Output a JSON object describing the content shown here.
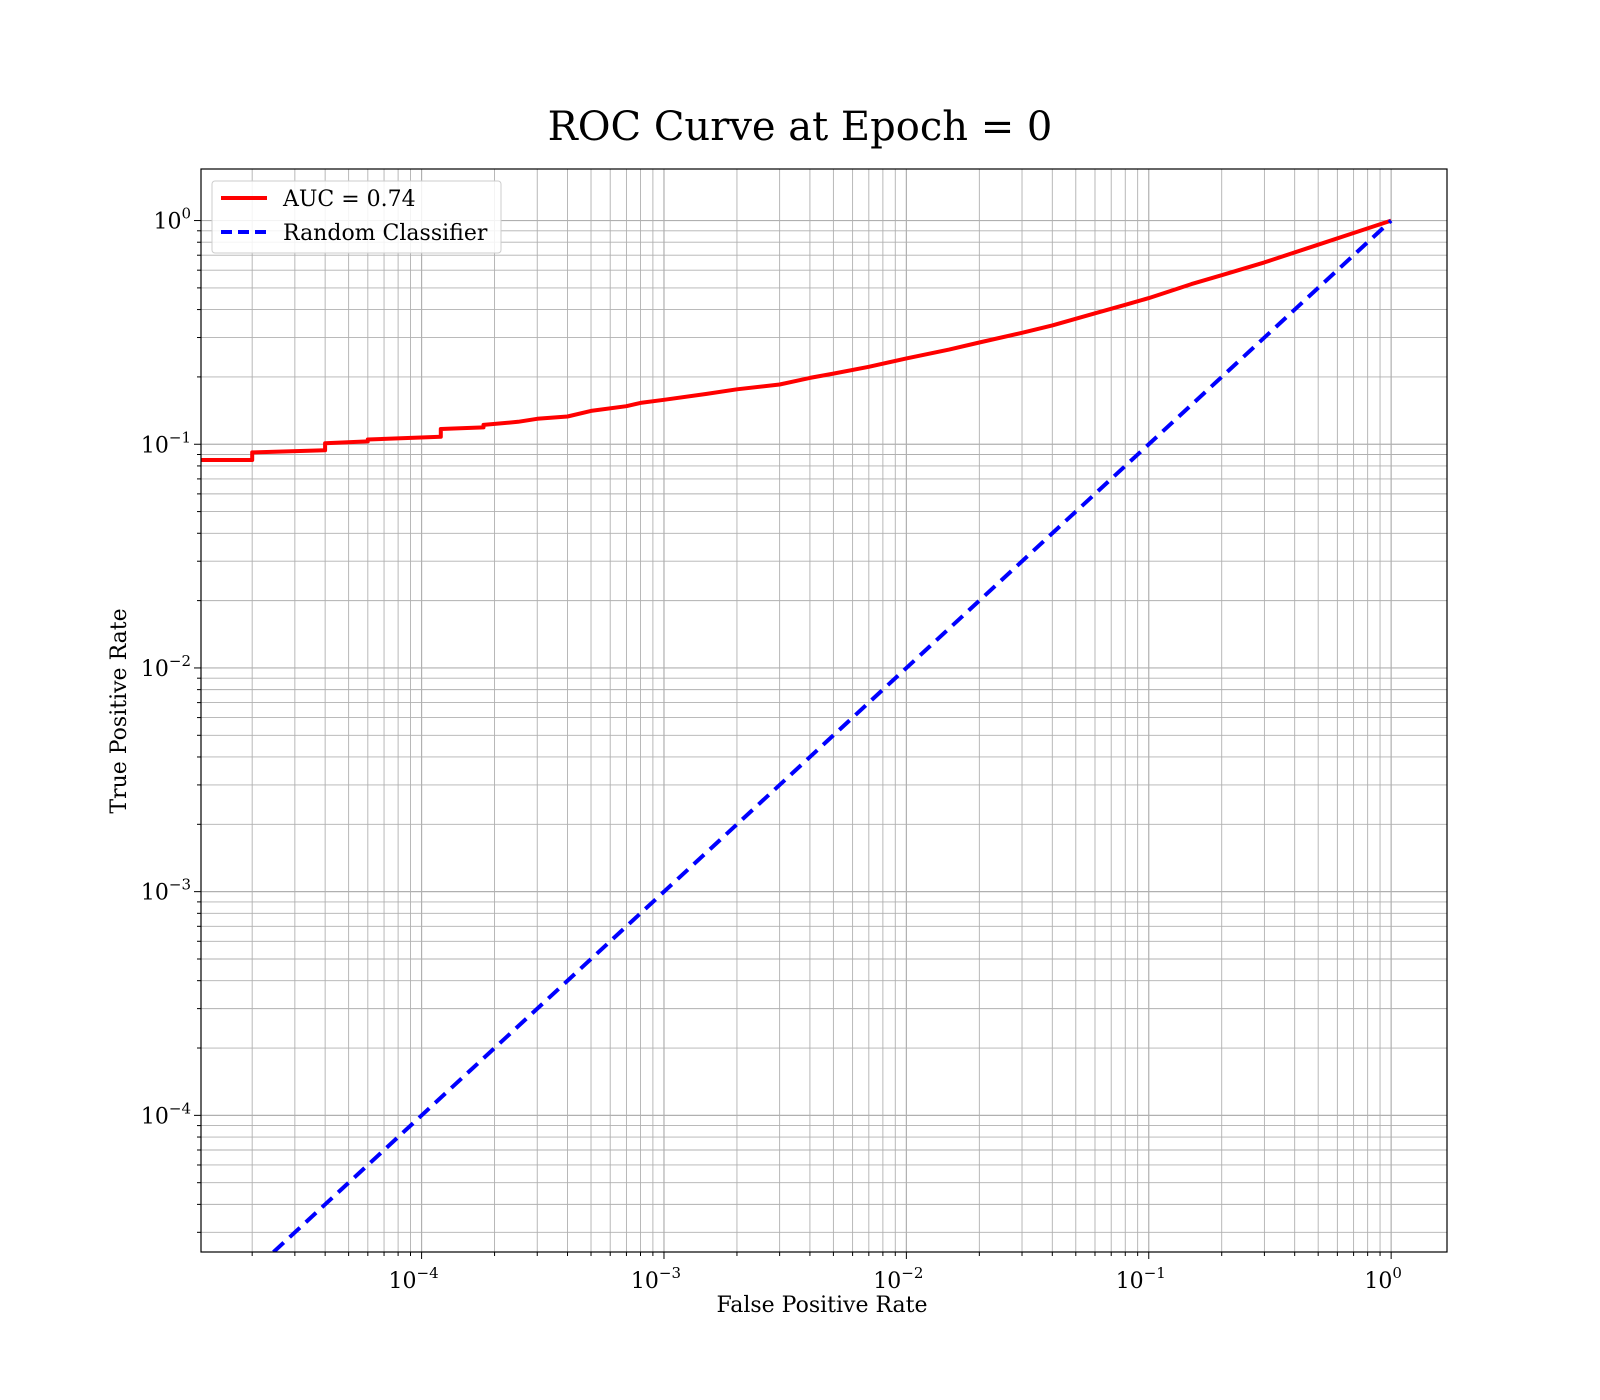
{
  "chart_data": {
    "type": "line",
    "title": "ROC Curve at Epoch = 0",
    "xlabel": "False Positive Rate",
    "ylabel": "True Positive Rate",
    "xscale": "log",
    "yscale": "log",
    "xlim": [
      1.23e-05,
      1.7
    ],
    "ylim": [
      2.45e-05,
      1.7
    ],
    "grid": "major and minor",
    "legend_placement": "top-left",
    "x_tick_labels": [
      {
        "value": 0.0001,
        "base": "10",
        "exp": "−4"
      },
      {
        "value": 0.001,
        "base": "10",
        "exp": "−3"
      },
      {
        "value": 0.01,
        "base": "10",
        "exp": "−2"
      },
      {
        "value": 0.1,
        "base": "10",
        "exp": "−1"
      },
      {
        "value": 1,
        "base": "10",
        "exp": "0"
      }
    ],
    "y_tick_labels": [
      {
        "value": 0.0001,
        "base": "10",
        "exp": "−4"
      },
      {
        "value": 0.001,
        "base": "10",
        "exp": "−3"
      },
      {
        "value": 0.01,
        "base": "10",
        "exp": "−2"
      },
      {
        "value": 0.1,
        "base": "10",
        "exp": "−1"
      },
      {
        "value": 1,
        "base": "10",
        "exp": "0"
      }
    ],
    "series": [
      {
        "name": "AUC = 0.74",
        "color": "#ff0000",
        "style": "solid",
        "x": [
          1.23e-05,
          2e-05,
          2e-05,
          4e-05,
          4e-05,
          6e-05,
          6e-05,
          0.00012,
          0.00012,
          0.00018,
          0.00018,
          0.00025,
          0.0003,
          0.0004,
          0.0005,
          0.0007,
          0.0008,
          0.001,
          0.0015,
          0.002,
          0.003,
          0.004,
          0.005,
          0.007,
          0.01,
          0.015,
          0.02,
          0.03,
          0.04,
          0.06,
          0.08,
          0.1,
          0.15,
          0.2,
          0.3,
          0.5,
          0.7,
          1.0
        ],
        "y": [
          0.085,
          0.085,
          0.092,
          0.094,
          0.101,
          0.103,
          0.105,
          0.108,
          0.117,
          0.119,
          0.122,
          0.126,
          0.13,
          0.133,
          0.141,
          0.148,
          0.153,
          0.158,
          0.168,
          0.176,
          0.185,
          0.198,
          0.207,
          0.222,
          0.242,
          0.265,
          0.285,
          0.315,
          0.34,
          0.385,
          0.42,
          0.45,
          0.52,
          0.57,
          0.65,
          0.78,
          0.88,
          1.0
        ]
      },
      {
        "name": "Random Classifier",
        "color": "#0000ff",
        "style": "dashed",
        "x": [
          2.1e-05,
          1.0
        ],
        "y": [
          2.1e-05,
          1.0
        ]
      }
    ]
  }
}
